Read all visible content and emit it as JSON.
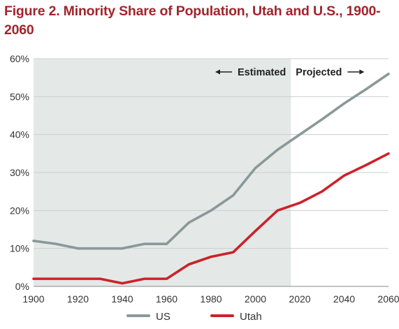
{
  "chart_data": {
    "type": "line",
    "title": "Figure 2.  Minority Share of Population, Utah and U.S., 1900-2060",
    "xlabel": "",
    "ylabel": "",
    "x": [
      1900,
      1910,
      1920,
      1930,
      1940,
      1950,
      1960,
      1970,
      1980,
      1990,
      2000,
      2010,
      2020,
      2030,
      2040,
      2050,
      2060
    ],
    "xlim": [
      1900,
      2060
    ],
    "ylim": [
      0,
      60
    ],
    "x_ticks": [
      "1900",
      "1920",
      "1940",
      "1960",
      "1980",
      "2000",
      "2020",
      "2040",
      "2060"
    ],
    "y_ticks": [
      "0%",
      "10%",
      "20%",
      "30%",
      "40%",
      "50%",
      "60%"
    ],
    "grid": "horizontal",
    "legend_position": "bottom",
    "series": [
      {
        "name": "US",
        "color": "#8a9899",
        "values": [
          12,
          11.2,
          10,
          10,
          10,
          11.2,
          11.2,
          16.8,
          20,
          24,
          31.2,
          36,
          40,
          44,
          48.2,
          52,
          56
        ]
      },
      {
        "name": "Utah",
        "color": "#cc2229",
        "values": [
          2,
          2,
          2,
          2,
          0.8,
          2,
          2,
          5.8,
          7.8,
          9,
          14.6,
          20,
          22,
          25,
          29.2,
          32,
          35
        ]
      }
    ],
    "estimated_region": {
      "from": 1900,
      "to": 2016,
      "color": "#e4e9e8",
      "left_label": "Estimated",
      "right_label": "Projected"
    }
  }
}
